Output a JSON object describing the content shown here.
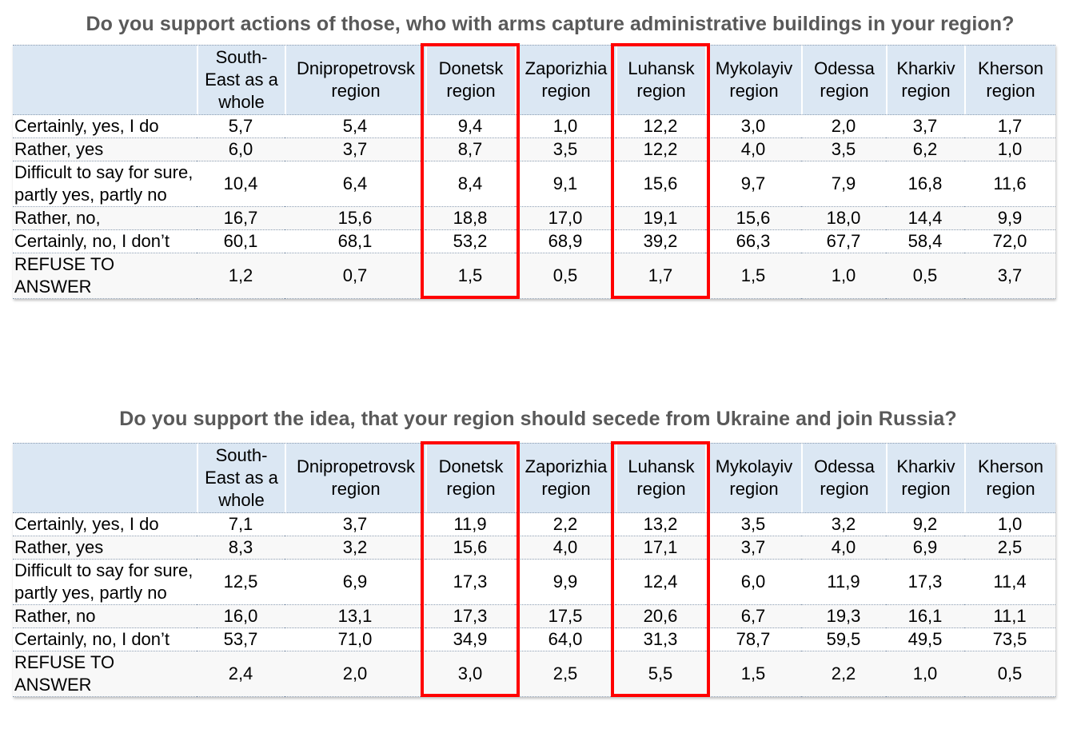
{
  "chart_data": [
    {
      "type": "table",
      "title": "Do you support actions of those, who with arms capture administrative buildings in your region?",
      "columns": [
        "",
        "South-East as a whole",
        "Dnipropetrovsk region",
        "Donetsk region",
        "Zaporizhia region",
        "Luhansk region",
        "Mykolayiv region",
        "Odessa region",
        "Kharkiv region",
        "Kherson region"
      ],
      "rows": [
        {
          "label": "Certainly, yes, I do",
          "values": [
            "5,7",
            "5,4",
            "9,4",
            "1,0",
            "12,2",
            "3,0",
            "2,0",
            "3,7",
            "1,7"
          ]
        },
        {
          "label": "Rather, yes",
          "values": [
            "6,0",
            "3,7",
            "8,7",
            "3,5",
            "12,2",
            "4,0",
            "3,5",
            "6,2",
            "1,0"
          ]
        },
        {
          "label": "Difficult to say for sure, partly yes, partly no",
          "values": [
            "10,4",
            "6,4",
            "8,4",
            "9,1",
            "15,6",
            "9,7",
            "7,9",
            "16,8",
            "11,6"
          ]
        },
        {
          "label": "Rather, no,",
          "values": [
            "16,7",
            "15,6",
            "18,8",
            "17,0",
            "19,1",
            "15,6",
            "18,0",
            "14,4",
            "9,9"
          ]
        },
        {
          "label": "Certainly, no, I don’t",
          "values": [
            "60,1",
            "68,1",
            "53,2",
            "68,9",
            "39,2",
            "66,3",
            "67,7",
            "58,4",
            "72,0"
          ]
        },
        {
          "label": "REFUSE TO ANSWER",
          "values": [
            "1,2",
            "0,7",
            "1,5",
            "0,5",
            "1,7",
            "1,5",
            "1,0",
            "0,5",
            "3,7"
          ]
        }
      ],
      "highlighted_columns": [
        "Donetsk region",
        "Luhansk region"
      ],
      "highlight_color": "#ff0000",
      "header_color": "#dbe7f3",
      "title_color": "#595959"
    },
    {
      "type": "table",
      "title": "Do you support the idea, that your region should secede from Ukraine  and join Russia?",
      "columns": [
        "",
        "South-East as a whole",
        "Dnipropetrovsk region",
        "Donetsk region",
        "Zaporizhia region",
        "Luhansk region",
        "Mykolayiv region",
        "Odessa region",
        "Kharkiv region",
        "Kherson region"
      ],
      "rows": [
        {
          "label": "Certainly, yes, I do",
          "values": [
            "7,1",
            "3,7",
            "11,9",
            "2,2",
            "13,2",
            "3,5",
            "3,2",
            "9,2",
            "1,0"
          ]
        },
        {
          "label": "Rather, yes",
          "values": [
            "8,3",
            "3,2",
            "15,6",
            "4,0",
            "17,1",
            "3,7",
            "4,0",
            "6,9",
            "2,5"
          ]
        },
        {
          "label": "Difficult to say for sure, partly yes, partly no",
          "values": [
            "12,5",
            "6,9",
            "17,3",
            "9,9",
            "12,4",
            "6,0",
            "11,9",
            "17,3",
            "11,4"
          ]
        },
        {
          "label": "Rather, no",
          "values": [
            "16,0",
            "13,1",
            "17,3",
            "17,5",
            "20,6",
            "6,7",
            "19,3",
            "16,1",
            "11,1"
          ]
        },
        {
          "label": "Certainly, no, I don’t",
          "values": [
            "53,7",
            "71,0",
            "34,9",
            "64,0",
            "31,3",
            "78,7",
            "59,5",
            "49,5",
            "73,5"
          ]
        },
        {
          "label": "REFUSE TO ANSWER",
          "values": [
            "2,4",
            "2,0",
            "3,0",
            "2,5",
            "5,5",
            "1,5",
            "2,2",
            "1,0",
            "0,5"
          ]
        }
      ],
      "highlighted_columns": [
        "Donetsk region",
        "Luhansk region"
      ],
      "highlight_color": "#ff0000",
      "header_color": "#dbe7f3",
      "title_color": "#595959"
    }
  ]
}
